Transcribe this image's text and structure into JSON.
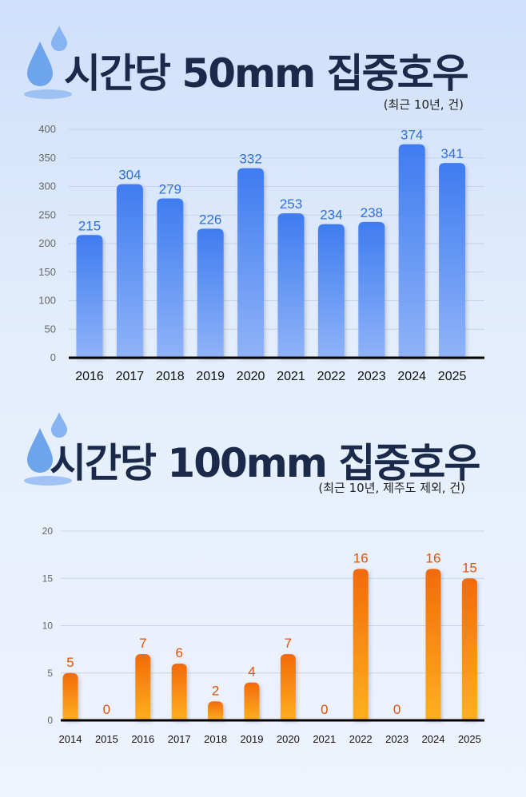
{
  "charts": [
    {
      "title": "시간당 50mm 집중호우",
      "subtitle": "(최근 10년, 건)",
      "chart_data": {
        "type": "bar",
        "categories": [
          "2016",
          "2017",
          "2018",
          "2019",
          "2020",
          "2021",
          "2022",
          "2023",
          "2024",
          "2025"
        ],
        "values": [
          215,
          304,
          279,
          226,
          332,
          253,
          234,
          238,
          374,
          341
        ],
        "yticks": [
          "0",
          "50",
          "100",
          "150",
          "200",
          "250",
          "300",
          "350",
          "400"
        ],
        "ylim": [
          0,
          400
        ],
        "grid": true,
        "bar_color_top": "#3f7cf0",
        "bar_color_bottom": "#8fb3f8",
        "label_color": "#2f6fe0"
      }
    },
    {
      "title": "시간당 100mm 집중호우",
      "subtitle": "(최근 10년, 제주도 제외, 건)",
      "chart_data": {
        "type": "bar",
        "categories": [
          "2014",
          "2015",
          "2016",
          "2017",
          "2018",
          "2019",
          "2020",
          "2021",
          "2022",
          "2023",
          "2024",
          "2025"
        ],
        "values": [
          5,
          0,
          7,
          6,
          2,
          4,
          7,
          0,
          16,
          0,
          16,
          15
        ],
        "yticks": [
          "0",
          "5",
          "10",
          "15",
          "20"
        ],
        "ylim": [
          0,
          20
        ],
        "grid": true,
        "bar_color_top": "#f26a0a",
        "bar_color_bottom": "#ffb020",
        "label_color": "#e0520a"
      }
    }
  ]
}
